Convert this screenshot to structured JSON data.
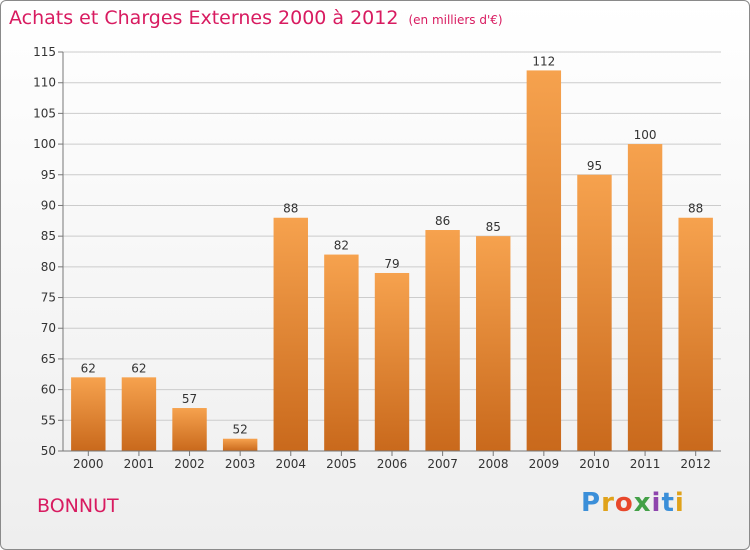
{
  "header": {
    "title": "Achats et Charges Externes 2000 à 2012",
    "unit": "(en milliers d'€)"
  },
  "commune": "BONNUT",
  "logo": {
    "letters": [
      "P",
      "r",
      "o",
      "x",
      "i",
      "t",
      "i"
    ]
  },
  "colors": {
    "title": "#d81b60",
    "bar_light": "#f6a24e",
    "bar_dark": "#c9691c",
    "grid": "#cccccc"
  },
  "chart_data": {
    "type": "bar",
    "title": "Achats et Charges Externes 2000 à 2012",
    "subtitle": "(en milliers d'€)",
    "categories": [
      "2000",
      "2001",
      "2002",
      "2003",
      "2004",
      "2005",
      "2006",
      "2007",
      "2008",
      "2009",
      "2010",
      "2011",
      "2012"
    ],
    "values": [
      62,
      62,
      57,
      52,
      88,
      82,
      79,
      86,
      85,
      112,
      95,
      100,
      88
    ],
    "ylim": [
      50,
      115
    ],
    "yticks": [
      50,
      55,
      60,
      65,
      70,
      75,
      80,
      85,
      90,
      95,
      100,
      105,
      110,
      115
    ],
    "grid": true,
    "data_labels": true
  }
}
